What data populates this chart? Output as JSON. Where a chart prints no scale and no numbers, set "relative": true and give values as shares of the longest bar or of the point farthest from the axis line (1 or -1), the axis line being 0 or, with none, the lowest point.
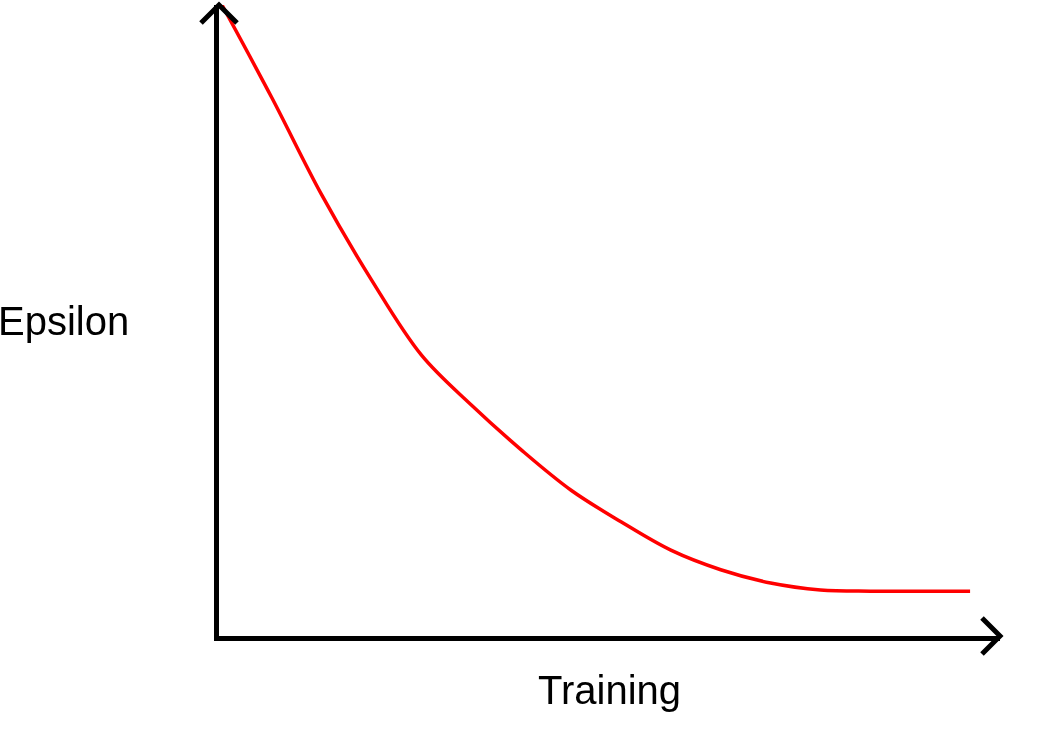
{
  "chart_data": {
    "type": "line",
    "relative": true,
    "xlabel": "Training",
    "ylabel": "Epsilon",
    "categories": [
      null,
      null,
      null,
      null,
      null,
      null,
      null,
      null,
      null,
      null,
      null,
      null,
      null,
      null,
      null,
      null
    ],
    "series": [
      {
        "color": "#ff0000",
        "values": [
          1.0,
          0.853,
          0.699,
          0.564,
          0.445,
          0.366,
          0.295,
          0.231,
          0.181,
          0.136,
          0.105,
          0.084,
          0.073,
          0.071,
          0.071,
          0.071
        ]
      }
    ],
    "marker": "none",
    "line_style": "solid"
  }
}
